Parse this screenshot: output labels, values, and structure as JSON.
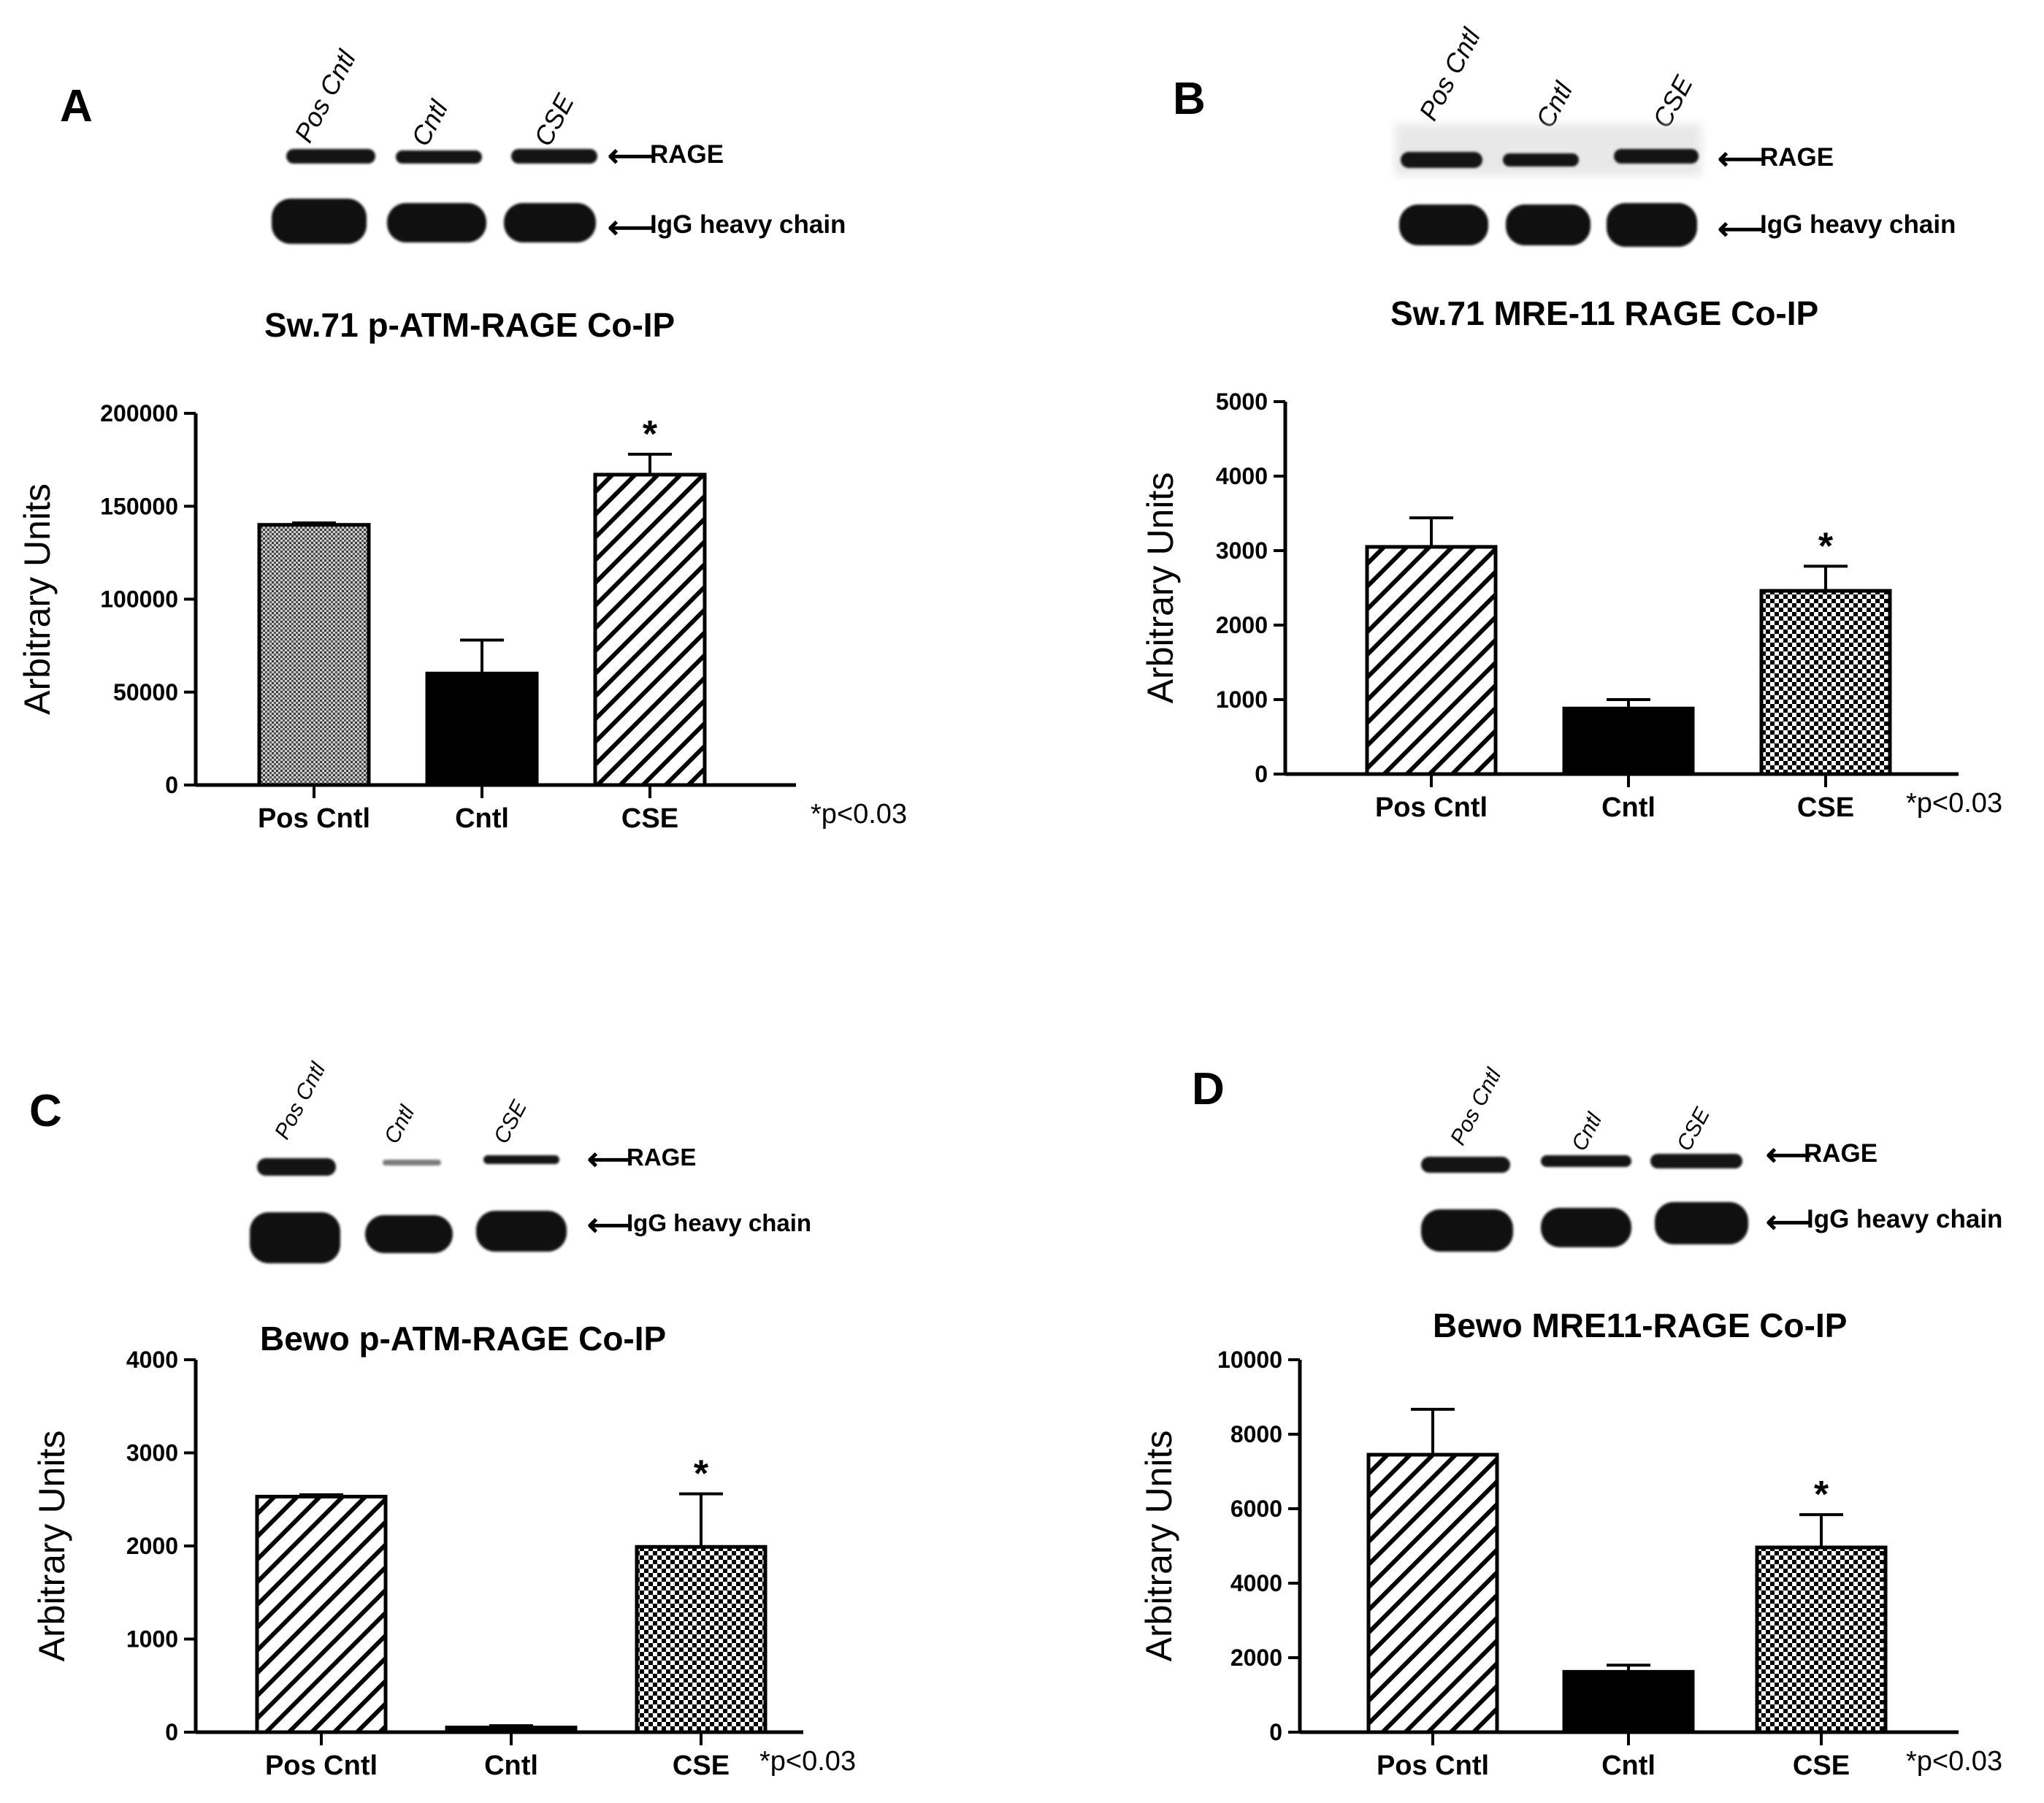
{
  "lanes": [
    "Pos Cntl",
    "Cntl",
    "CSE"
  ],
  "blot_labels": {
    "rage": "RAGE",
    "igg": "IgG heavy chain"
  },
  "footnote": "*p<0.03",
  "significance_marker": "*",
  "chart_data": [
    {
      "panel": "A",
      "type": "bar",
      "title": "Sw.71 p-ATM-RAGE Co-IP",
      "xlabel": "",
      "ylabel": "Arbitrary Units",
      "categories": [
        "Pos Cntl",
        "Cntl",
        "CSE"
      ],
      "values": [
        140000,
        60000,
        167000
      ],
      "errors": [
        1000,
        18000,
        11000
      ],
      "patterns": [
        "dots",
        "solid",
        "hatch"
      ],
      "significant": [
        false,
        false,
        true
      ],
      "ylim": [
        0,
        200000
      ],
      "yticks": [
        0,
        50000,
        100000,
        150000,
        200000
      ],
      "ytick_labels": [
        "0",
        "50000",
        "100000",
        "150000",
        "200000"
      ]
    },
    {
      "panel": "B",
      "type": "bar",
      "title": "Sw.71 MRE-11 RAGE Co-IP",
      "xlabel": "",
      "ylabel": "Arbitrary Units",
      "categories": [
        "Pos Cntl",
        "Cntl",
        "CSE"
      ],
      "values": [
        3050,
        880,
        2460
      ],
      "errors": [
        390,
        120,
        330
      ],
      "patterns": [
        "hatch",
        "solid",
        "checker"
      ],
      "significant": [
        false,
        false,
        true
      ],
      "ylim": [
        0,
        5000
      ],
      "yticks": [
        0,
        1000,
        2000,
        3000,
        4000,
        5000
      ],
      "ytick_labels": [
        "0",
        "1000",
        "2000",
        "3000",
        "4000",
        "5000"
      ]
    },
    {
      "panel": "C",
      "type": "bar",
      "title": "Bewo p-ATM-RAGE Co-IP",
      "xlabel": "",
      "ylabel": "Arbitrary Units",
      "categories": [
        "Pos Cntl",
        "Cntl",
        "CSE"
      ],
      "values": [
        2530,
        50,
        1990
      ],
      "errors": [
        20,
        20,
        570
      ],
      "patterns": [
        "hatch",
        "solid",
        "checker"
      ],
      "significant": [
        false,
        false,
        true
      ],
      "ylim": [
        0,
        4000
      ],
      "yticks": [
        0,
        1000,
        2000,
        3000,
        4000
      ],
      "ytick_labels": [
        "0",
        "1000",
        "2000",
        "3000",
        "4000"
      ]
    },
    {
      "panel": "D",
      "type": "bar",
      "title": "Bewo MRE11-RAGE Co-IP",
      "xlabel": "",
      "ylabel": "Arbitrary Units",
      "categories": [
        "Pos Cntl",
        "Cntl",
        "CSE"
      ],
      "values": [
        7450,
        1620,
        4960
      ],
      "errors": [
        1220,
        180,
        880
      ],
      "patterns": [
        "hatch",
        "solid",
        "checker"
      ],
      "significant": [
        false,
        false,
        true
      ],
      "ylim": [
        0,
        10000
      ],
      "yticks": [
        0,
        2000,
        4000,
        6000,
        8000,
        10000
      ],
      "ytick_labels": [
        "0",
        "2000",
        "4000",
        "6000",
        "8000",
        "10000"
      ]
    }
  ]
}
